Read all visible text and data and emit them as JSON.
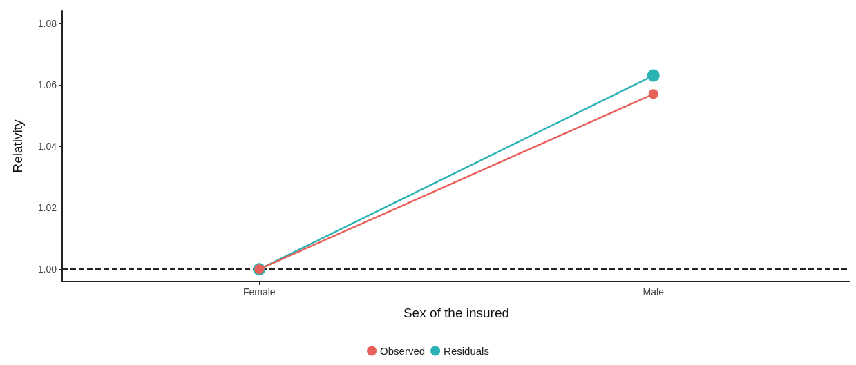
{
  "chart_data": {
    "type": "line",
    "xlabel": "Sex of the insured",
    "ylabel": "Relativity",
    "categories": [
      "Female",
      "Male"
    ],
    "series": [
      {
        "name": "Observed",
        "color": "#e8605a",
        "values": [
          1.0,
          1.057
        ]
      },
      {
        "name": "Residuals",
        "color": "#2bb2b5",
        "values": [
          1.0,
          1.063
        ]
      }
    ],
    "ylim": [
      0.996,
      1.084
    ],
    "yticks": [
      {
        "value": 1.0,
        "label": "1.00"
      },
      1.02,
      1.04,
      1.06,
      1.08
    ],
    "ref_lines": [
      {
        "axis": "y",
        "value": 1.0,
        "line_style": "dashed",
        "color": "#222222"
      }
    ],
    "grid": false,
    "legend": "bottom",
    "marker": "circle",
    "line_style": "solid"
  }
}
